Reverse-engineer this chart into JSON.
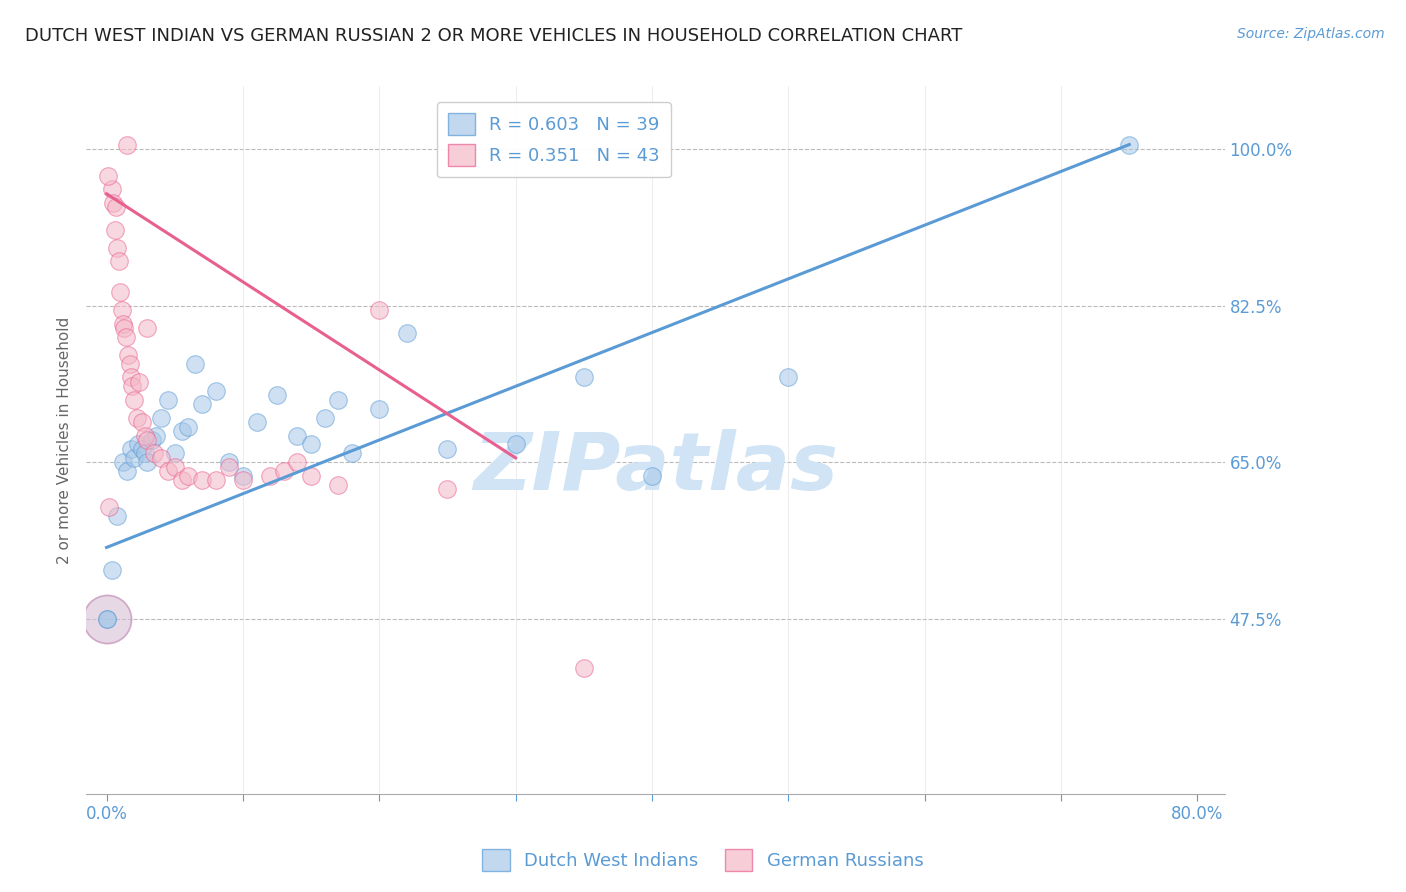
{
  "title": "DUTCH WEST INDIAN VS GERMAN RUSSIAN 2 OR MORE VEHICLES IN HOUSEHOLD CORRELATION CHART",
  "source": "Source: ZipAtlas.com",
  "ylabel": "2 or more Vehicles in Household",
  "yticks": [
    47.5,
    65.0,
    82.5,
    100.0
  ],
  "ytick_labels": [
    "47.5%",
    "65.0%",
    "82.5%",
    "100.0%"
  ],
  "xlim": [
    -1.5,
    82.0
  ],
  "ylim": [
    28.0,
    107.0
  ],
  "blue_color": "#a8c8e8",
  "pink_color": "#f4b8c8",
  "blue_edge_color": "#5b9bd5",
  "pink_edge_color": "#e86090",
  "blue_line_color": "#5b9bd5",
  "pink_line_color": "#e86090",
  "legend_blue_r": "R = 0.603",
  "legend_blue_n": "N = 39",
  "legend_pink_r": "R = 0.351",
  "legend_pink_n": "N = 43",
  "watermark": "ZIPatlas",
  "watermark_color": "#d0e4f5",
  "title_fontsize": 13,
  "axis_label_color": "#5b9bd5",
  "grid_color": "#bbbbbb",
  "background_color": "#ffffff",
  "blue_x": [
    0.4,
    0.8,
    1.2,
    1.5,
    1.8,
    2.0,
    2.3,
    2.6,
    2.8,
    3.0,
    3.3,
    3.6,
    4.0,
    4.5,
    5.0,
    5.5,
    6.0,
    6.5,
    7.0,
    8.0,
    9.0,
    10.0,
    11.0,
    12.5,
    14.0,
    15.0,
    16.0,
    17.0,
    18.0,
    20.0,
    22.0,
    25.0,
    30.0,
    35.0,
    40.0,
    50.0,
    75.0,
    0.0,
    0.0
  ],
  "blue_y": [
    53.0,
    59.0,
    65.0,
    64.0,
    66.5,
    65.5,
    67.0,
    66.5,
    66.0,
    65.0,
    67.5,
    68.0,
    70.0,
    72.0,
    66.0,
    68.5,
    69.0,
    76.0,
    71.5,
    73.0,
    65.0,
    63.5,
    69.5,
    72.5,
    68.0,
    67.0,
    70.0,
    72.0,
    66.0,
    71.0,
    79.5,
    66.5,
    67.0,
    74.5,
    63.5,
    74.5,
    100.5,
    47.5,
    47.5
  ],
  "blue_large_x": [
    0.0
  ],
  "blue_large_y": [
    47.5
  ],
  "pink_x": [
    0.2,
    0.4,
    0.5,
    0.6,
    0.7,
    0.8,
    0.9,
    1.0,
    1.1,
    1.2,
    1.3,
    1.4,
    1.5,
    1.6,
    1.7,
    1.8,
    1.9,
    2.0,
    2.2,
    2.4,
    2.6,
    2.8,
    3.0,
    3.5,
    4.0,
    4.5,
    5.0,
    5.5,
    6.0,
    7.0,
    8.0,
    9.0,
    10.0,
    12.0,
    13.0,
    14.0,
    15.0,
    17.0,
    20.0,
    25.0,
    35.0,
    3.0,
    0.1
  ],
  "pink_y": [
    60.0,
    95.5,
    94.0,
    91.0,
    93.5,
    89.0,
    87.5,
    84.0,
    82.0,
    80.5,
    80.0,
    79.0,
    100.5,
    77.0,
    76.0,
    74.5,
    73.5,
    72.0,
    70.0,
    74.0,
    69.5,
    68.0,
    67.5,
    66.0,
    65.5,
    64.0,
    64.5,
    63.0,
    63.5,
    63.0,
    63.0,
    64.5,
    63.0,
    63.5,
    64.0,
    65.0,
    63.5,
    62.5,
    82.0,
    62.0,
    42.0,
    80.0,
    97.0
  ],
  "pink_large_x": [
    0.0
  ],
  "pink_large_y": [
    47.5
  ],
  "blue_line_x0": 0.0,
  "blue_line_y0": 55.5,
  "blue_line_x1": 75.0,
  "blue_line_y1": 100.5,
  "pink_line_x0": 0.0,
  "pink_line_y0": 95.0,
  "pink_line_x1": 30.0,
  "pink_line_y1": 65.5
}
